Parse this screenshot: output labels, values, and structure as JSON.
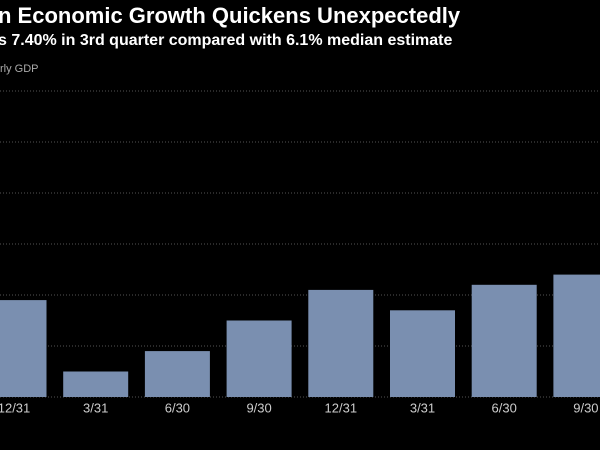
{
  "chart_data": {
    "type": "bar",
    "title": "n Economic Growth Quickens Unexpectedly",
    "subtitle": "s 7.40% in 3rd quarter compared with 6.1% median estimate",
    "y_label": "rly GDP",
    "categories": [
      "12/31",
      "3/31",
      "6/30",
      "9/30",
      "12/31",
      "3/31",
      "6/30",
      "9/30"
    ],
    "values": [
      6.9,
      5.5,
      5.9,
      6.5,
      7.1,
      6.7,
      7.2,
      7.4
    ],
    "color": "#7a8fb0",
    "ylim": [
      5,
      11.2
    ],
    "yticks": [
      5,
      6,
      7,
      8,
      9,
      10,
      11
    ],
    "grid": true
  }
}
